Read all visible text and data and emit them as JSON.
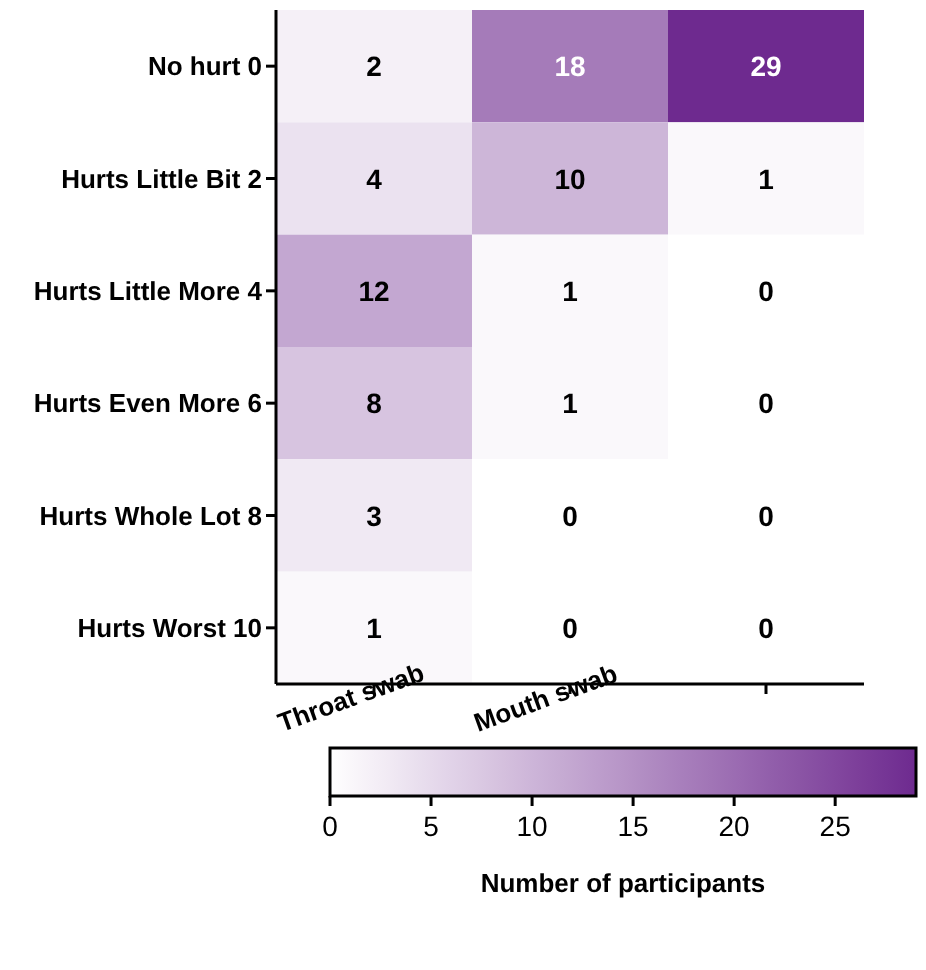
{
  "chart_data": {
    "type": "heatmap",
    "categories": [
      "Throat swab",
      "Mouth swab",
      null
    ],
    "y_categories": [
      "No hurt 0",
      "Hurts Little Bit 2",
      "Hurts Little More 4",
      "Hurts Even More 6",
      "Hurts Whole Lot 8",
      "Hurts Worst 10"
    ],
    "cells": [
      [
        2,
        18,
        29
      ],
      [
        4,
        10,
        1
      ],
      [
        12,
        1,
        0
      ],
      [
        8,
        1,
        0
      ],
      [
        3,
        0,
        0
      ],
      [
        1,
        0,
        0
      ]
    ],
    "clim": [
      0,
      29
    ],
    "cticks": [
      0,
      5,
      10,
      15,
      20,
      25
    ],
    "clabel": "Number of participants",
    "colors": [
      "#ffffff",
      "#6e2a8f"
    ],
    "data_labels": true
  }
}
